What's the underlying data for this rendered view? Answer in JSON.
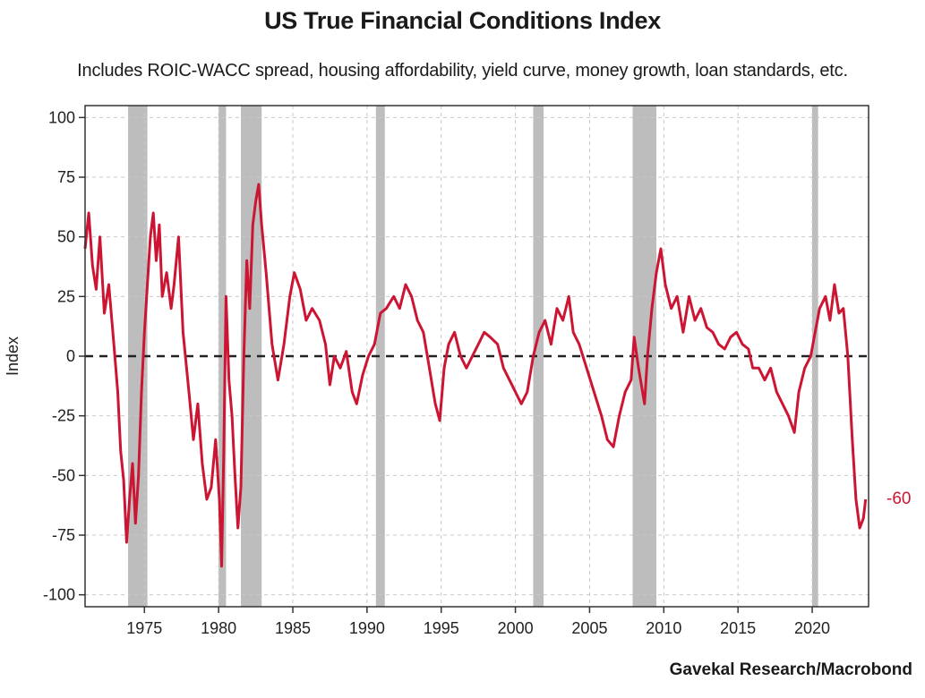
{
  "chart_data": {
    "type": "line",
    "title": "US True Financial Conditions Index",
    "subtitle": "Includes ROIC-WACC spread, housing affordability, yield curve, money growth, loan standards, etc.",
    "ylabel": "Index",
    "xlabel": "",
    "source": "Gavekal Research/Macrobond",
    "ylim": [
      -105,
      105
    ],
    "xlim": [
      1971.0,
      2023.8
    ],
    "y_ticks": [
      100,
      75,
      50,
      25,
      0,
      -25,
      -50,
      -75,
      -100
    ],
    "x_ticks": [
      1975,
      1980,
      1985,
      1990,
      1995,
      2000,
      2005,
      2010,
      2015,
      2020
    ],
    "grid": true,
    "zero_line": "dashed",
    "last_value_label": "-60",
    "colors": {
      "line": "#cc1533",
      "recession": "#bdbdbd",
      "grid": "#c8c8c8",
      "zero": "#222222"
    },
    "recessions": [
      [
        1973.9,
        1975.2
      ],
      [
        1980.0,
        1980.5
      ],
      [
        1981.5,
        1982.9
      ],
      [
        1990.6,
        1991.2
      ],
      [
        2001.2,
        2001.9
      ],
      [
        2007.9,
        2009.5
      ],
      [
        2020.0,
        2020.4
      ]
    ],
    "series": [
      {
        "values": [
          [
            1971.0,
            45
          ],
          [
            1971.25,
            60
          ],
          [
            1971.5,
            38
          ],
          [
            1971.75,
            28
          ],
          [
            1972.0,
            50
          ],
          [
            1972.3,
            18
          ],
          [
            1972.6,
            30
          ],
          [
            1972.9,
            8
          ],
          [
            1973.2,
            -15
          ],
          [
            1973.4,
            -40
          ],
          [
            1973.6,
            -52
          ],
          [
            1973.8,
            -78
          ],
          [
            1974.0,
            -60
          ],
          [
            1974.2,
            -45
          ],
          [
            1974.4,
            -70
          ],
          [
            1974.6,
            -50
          ],
          [
            1974.8,
            -15
          ],
          [
            1975.0,
            10
          ],
          [
            1975.2,
            30
          ],
          [
            1975.4,
            50
          ],
          [
            1975.6,
            60
          ],
          [
            1975.8,
            40
          ],
          [
            1976.0,
            55
          ],
          [
            1976.2,
            25
          ],
          [
            1976.5,
            35
          ],
          [
            1976.8,
            20
          ],
          [
            1977.0,
            30
          ],
          [
            1977.3,
            50
          ],
          [
            1977.6,
            10
          ],
          [
            1978.0,
            -15
          ],
          [
            1978.3,
            -35
          ],
          [
            1978.6,
            -20
          ],
          [
            1978.9,
            -45
          ],
          [
            1979.2,
            -60
          ],
          [
            1979.5,
            -55
          ],
          [
            1979.8,
            -35
          ],
          [
            1980.05,
            -60
          ],
          [
            1980.2,
            -88
          ],
          [
            1980.35,
            -40
          ],
          [
            1980.5,
            25
          ],
          [
            1980.7,
            -10
          ],
          [
            1980.9,
            -25
          ],
          [
            1981.1,
            -50
          ],
          [
            1981.3,
            -72
          ],
          [
            1981.5,
            -55
          ],
          [
            1981.7,
            0
          ],
          [
            1981.9,
            40
          ],
          [
            1982.1,
            20
          ],
          [
            1982.3,
            55
          ],
          [
            1982.5,
            65
          ],
          [
            1982.7,
            72
          ],
          [
            1982.9,
            55
          ],
          [
            1983.2,
            35
          ],
          [
            1983.6,
            5
          ],
          [
            1984.0,
            -10
          ],
          [
            1984.4,
            5
          ],
          [
            1984.8,
            25
          ],
          [
            1985.1,
            35
          ],
          [
            1985.5,
            28
          ],
          [
            1985.9,
            15
          ],
          [
            1986.3,
            20
          ],
          [
            1986.8,
            15
          ],
          [
            1987.2,
            5
          ],
          [
            1987.5,
            -12
          ],
          [
            1987.8,
            0
          ],
          [
            1988.2,
            -5
          ],
          [
            1988.6,
            2
          ],
          [
            1989.0,
            -15
          ],
          [
            1989.3,
            -20
          ],
          [
            1989.7,
            -8
          ],
          [
            1990.1,
            0
          ],
          [
            1990.5,
            5
          ],
          [
            1990.9,
            18
          ],
          [
            1991.3,
            20
          ],
          [
            1991.8,
            25
          ],
          [
            1992.2,
            20
          ],
          [
            1992.6,
            30
          ],
          [
            1993.0,
            25
          ],
          [
            1993.4,
            15
          ],
          [
            1993.8,
            10
          ],
          [
            1994.2,
            -5
          ],
          [
            1994.6,
            -20
          ],
          [
            1994.9,
            -27
          ],
          [
            1995.2,
            -5
          ],
          [
            1995.5,
            5
          ],
          [
            1995.9,
            10
          ],
          [
            1996.3,
            0
          ],
          [
            1996.7,
            -5
          ],
          [
            1997.1,
            0
          ],
          [
            1997.5,
            5
          ],
          [
            1997.9,
            10
          ],
          [
            1998.3,
            8
          ],
          [
            1998.8,
            5
          ],
          [
            1999.2,
            -5
          ],
          [
            1999.6,
            -10
          ],
          [
            2000.0,
            -15
          ],
          [
            2000.4,
            -20
          ],
          [
            2000.8,
            -15
          ],
          [
            2001.2,
            0
          ],
          [
            2001.6,
            10
          ],
          [
            2002.0,
            15
          ],
          [
            2002.4,
            5
          ],
          [
            2002.8,
            20
          ],
          [
            2003.2,
            15
          ],
          [
            2003.6,
            25
          ],
          [
            2003.9,
            10
          ],
          [
            2004.3,
            5
          ],
          [
            2004.8,
            -5
          ],
          [
            2005.3,
            -15
          ],
          [
            2005.8,
            -25
          ],
          [
            2006.2,
            -35
          ],
          [
            2006.6,
            -38
          ],
          [
            2007.0,
            -25
          ],
          [
            2007.4,
            -15
          ],
          [
            2007.8,
            -10
          ],
          [
            2008.0,
            8
          ],
          [
            2008.3,
            -5
          ],
          [
            2008.7,
            -20
          ],
          [
            2008.9,
            0
          ],
          [
            2009.2,
            20
          ],
          [
            2009.5,
            35
          ],
          [
            2009.8,
            45
          ],
          [
            2010.1,
            30
          ],
          [
            2010.5,
            20
          ],
          [
            2010.9,
            25
          ],
          [
            2011.3,
            10
          ],
          [
            2011.7,
            25
          ],
          [
            2012.1,
            15
          ],
          [
            2012.5,
            20
          ],
          [
            2012.9,
            12
          ],
          [
            2013.3,
            10
          ],
          [
            2013.7,
            5
          ],
          [
            2014.1,
            3
          ],
          [
            2014.5,
            8
          ],
          [
            2014.9,
            10
          ],
          [
            2015.3,
            5
          ],
          [
            2015.7,
            3
          ],
          [
            2016.0,
            -5
          ],
          [
            2016.4,
            -5
          ],
          [
            2016.8,
            -10
          ],
          [
            2017.2,
            -5
          ],
          [
            2017.6,
            -15
          ],
          [
            2018.0,
            -20
          ],
          [
            2018.4,
            -25
          ],
          [
            2018.8,
            -32
          ],
          [
            2019.1,
            -15
          ],
          [
            2019.5,
            -5
          ],
          [
            2019.9,
            0
          ],
          [
            2020.2,
            10
          ],
          [
            2020.5,
            20
          ],
          [
            2020.9,
            25
          ],
          [
            2021.2,
            15
          ],
          [
            2021.5,
            30
          ],
          [
            2021.8,
            18
          ],
          [
            2022.1,
            20
          ],
          [
            2022.4,
            0
          ],
          [
            2022.7,
            -35
          ],
          [
            2022.95,
            -60
          ],
          [
            2023.2,
            -72
          ],
          [
            2023.45,
            -68
          ],
          [
            2023.6,
            -60
          ]
        ]
      }
    ]
  }
}
